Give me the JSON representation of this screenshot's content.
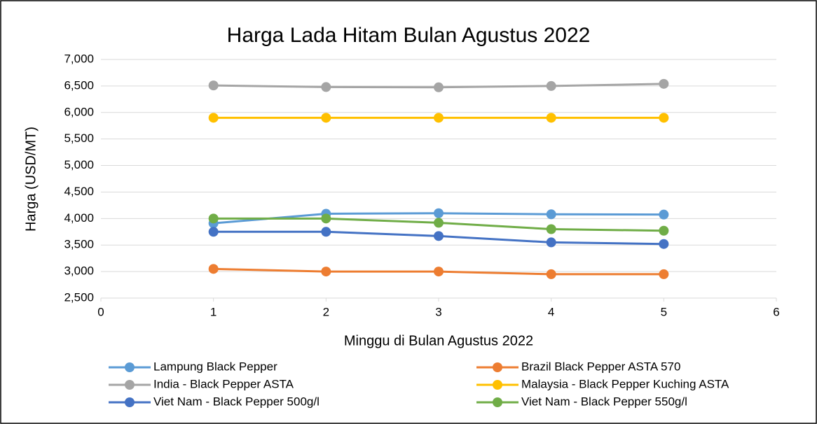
{
  "chart_data": {
    "type": "line",
    "title": "Harga Lada Hitam Bulan Agustus 2022",
    "x_label": "Minggu di Bulan Agustus 2022",
    "y_label": "Harga (USD/MT)",
    "x": [
      1,
      2,
      3,
      4,
      5
    ],
    "series": [
      {
        "name": "Lampung Black Pepper",
        "color": "#5b9bd5",
        "values": [
          3910,
          4090,
          4100,
          4080,
          4075
        ]
      },
      {
        "name": "Brazil Black Pepper ASTA 570",
        "color": "#ed7d31",
        "values": [
          3050,
          3000,
          3000,
          2950,
          2950
        ]
      },
      {
        "name": "India - Black Pepper ASTA",
        "color": "#a5a5a5",
        "values": [
          6510,
          6480,
          6475,
          6500,
          6540
        ]
      },
      {
        "name": "Malaysia - Black Pepper Kuching ASTA",
        "color": "#ffc000",
        "values": [
          5900,
          5900,
          5900,
          5900,
          5900
        ]
      },
      {
        "name": "Viet Nam - Black Pepper 500g/l",
        "color": "#4472c4",
        "values": [
          3750,
          3750,
          3670,
          3550,
          3520
        ]
      },
      {
        "name": "Viet Nam - Black Pepper 550g/l",
        "color": "#70ad47",
        "values": [
          4000,
          4000,
          3920,
          3800,
          3770
        ]
      }
    ],
    "xlim": [
      0,
      6
    ],
    "xticks": [
      0,
      1,
      2,
      3,
      4,
      5,
      6
    ],
    "ylim": [
      2500,
      7000
    ],
    "yticks": [
      {
        "value": 2500,
        "label": "2,500"
      },
      {
        "value": 3000,
        "label": "3,000"
      },
      {
        "value": 3500,
        "label": "3,500"
      },
      {
        "value": 4000,
        "label": "4,000"
      },
      {
        "value": 4500,
        "label": "4,500"
      },
      {
        "value": 5000,
        "label": "5,000"
      },
      {
        "value": 5500,
        "label": "5,500"
      },
      {
        "value": 6000,
        "label": "6,000"
      },
      {
        "value": 6500,
        "label": "6,500"
      },
      {
        "value": 7000,
        "label": "7,000"
      }
    ],
    "grid": true,
    "legend": "bottom"
  }
}
